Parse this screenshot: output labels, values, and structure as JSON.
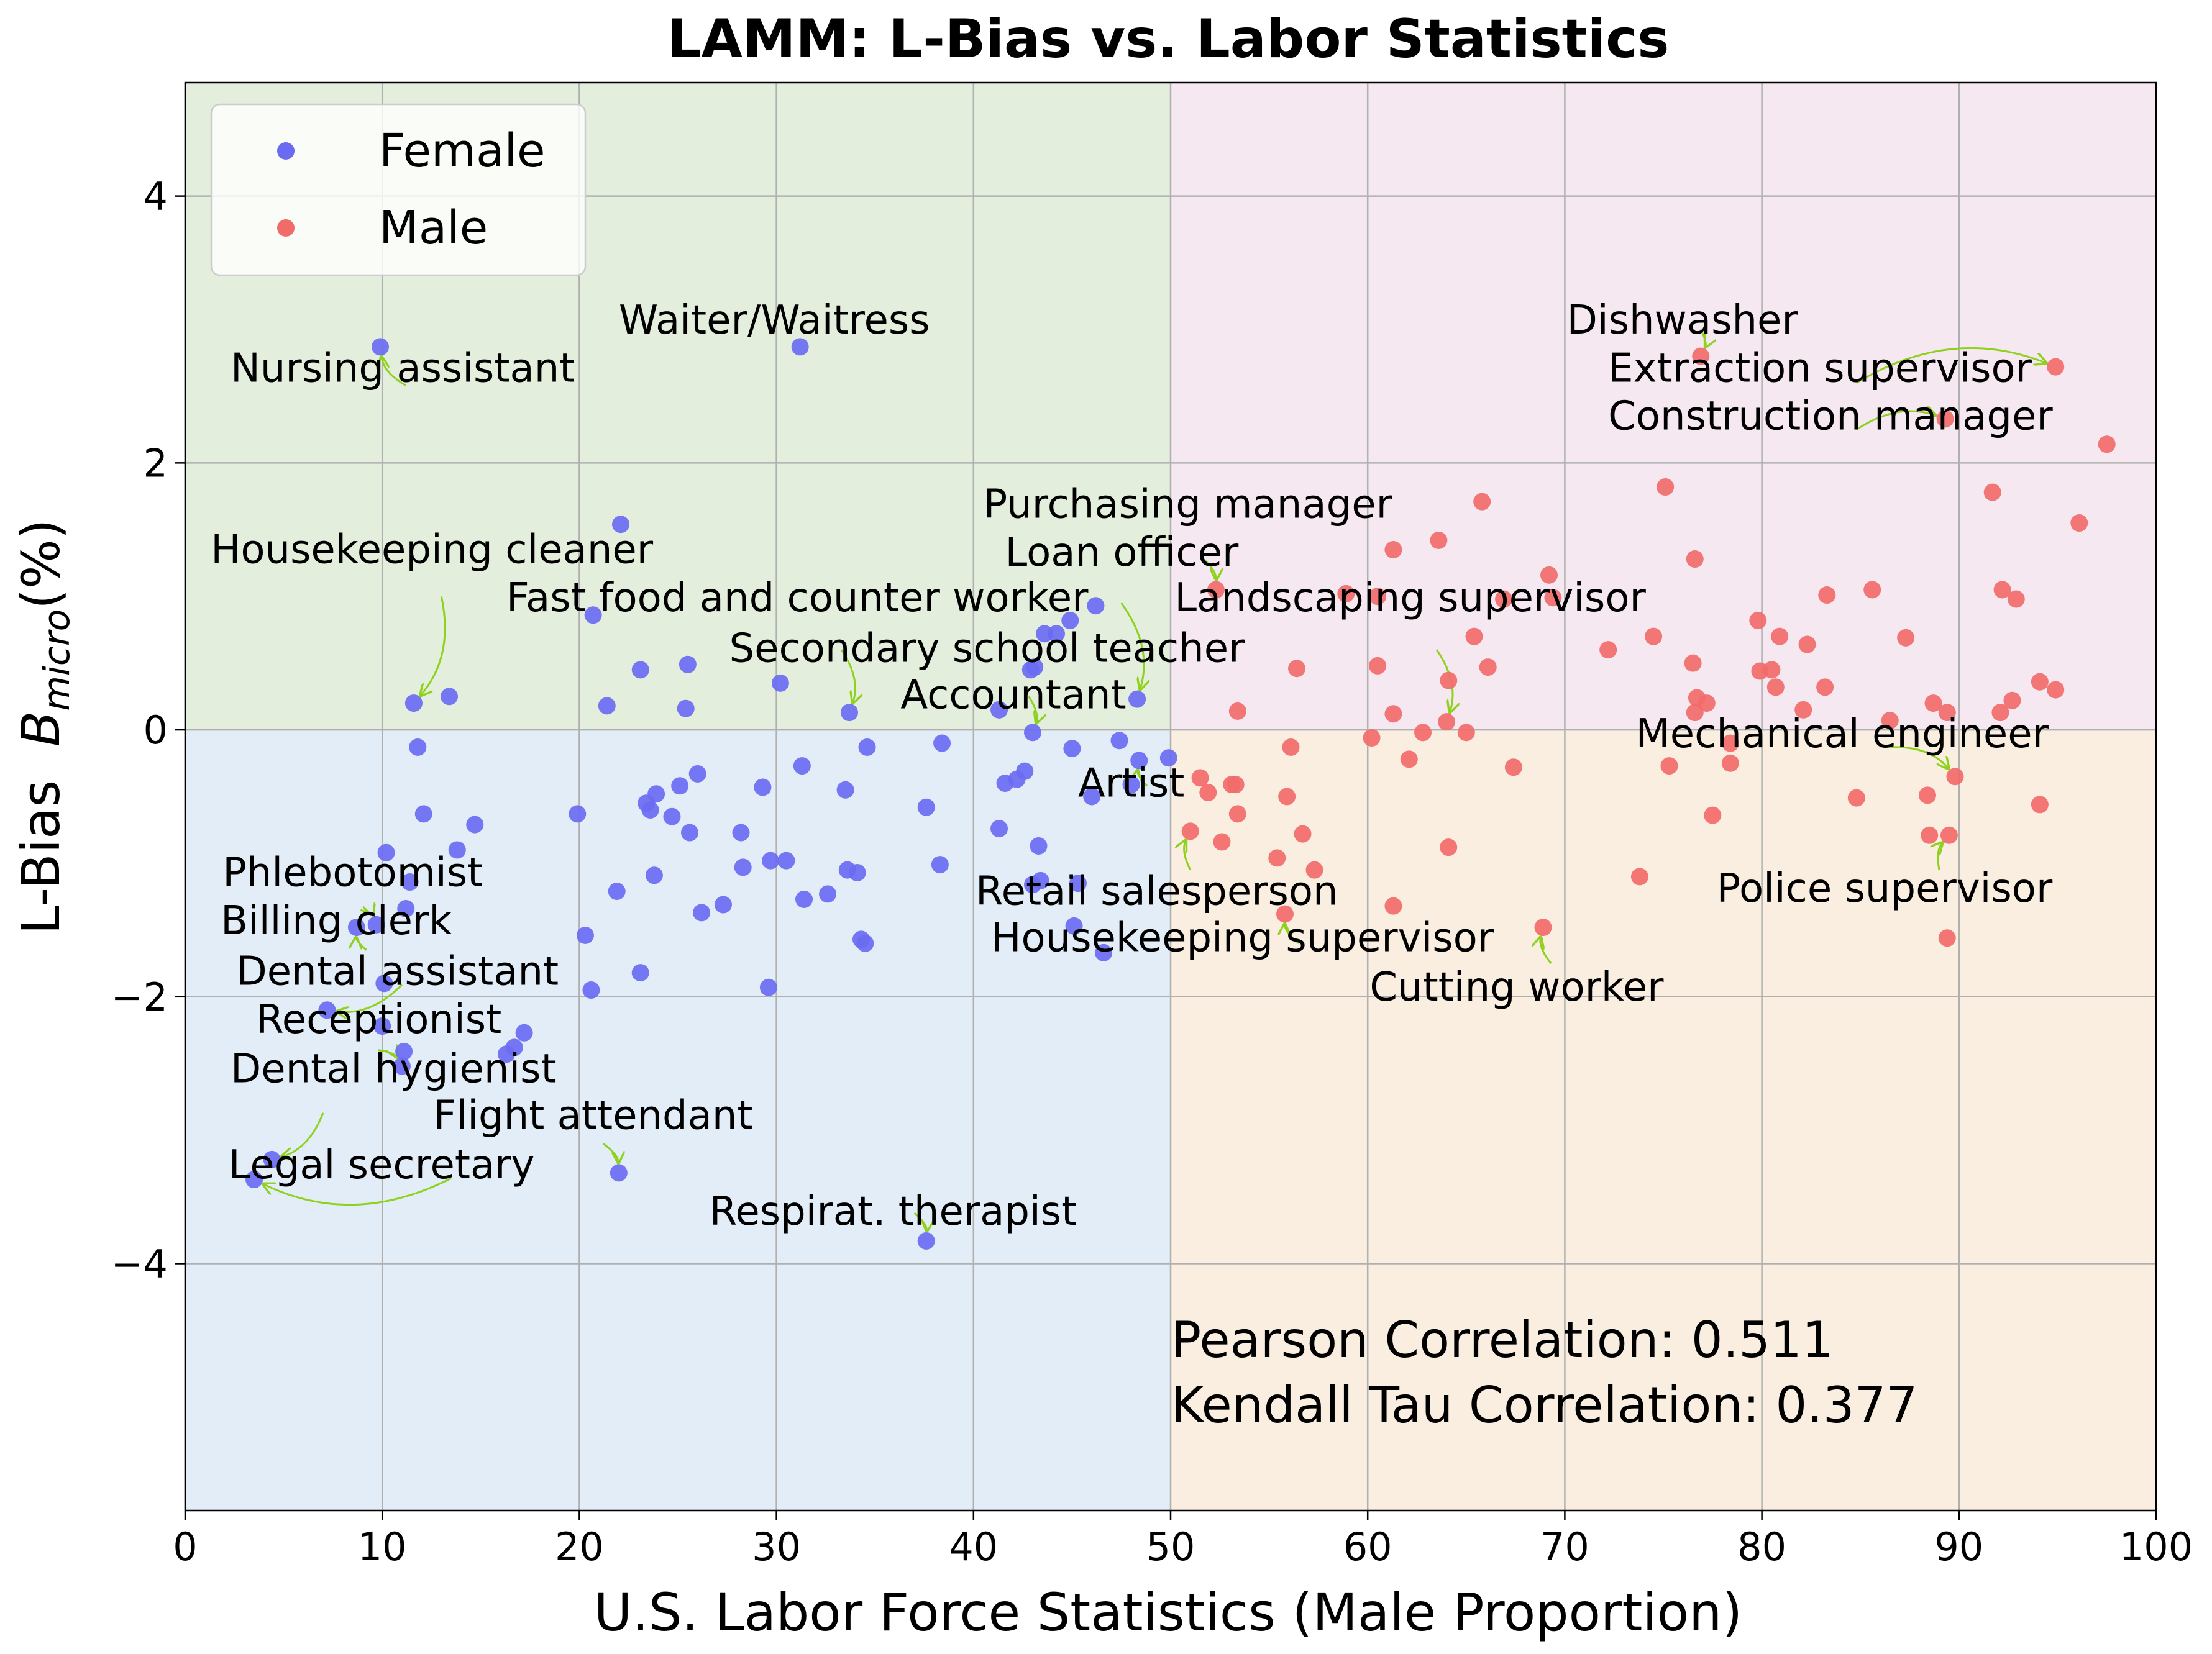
{
  "chart_data": {
    "type": "scatter",
    "title": "LAMM: L-Bias vs. Labor Statistics",
    "xlabel": "U.S. Labor Force Statistics (Male Proportion)",
    "ylabel_prefix": "L-Bias  ",
    "ylabel_var": "B",
    "ylabel_sub": "micro",
    "ylabel_unit": "(%)",
    "xlim": [
      0,
      100
    ],
    "ylim": [
      -5.85,
      4.85
    ],
    "xticks": [
      0,
      10,
      20,
      30,
      40,
      50,
      60,
      70,
      80,
      90,
      100
    ],
    "xtick_labels": [
      "0",
      "10",
      "20",
      "30",
      "40",
      "50",
      "60",
      "70",
      "80",
      "90",
      "100"
    ],
    "yticks": [
      4,
      2,
      0,
      -2,
      -4
    ],
    "ytick_labels": [
      "4",
      "2",
      "0",
      "−2",
      "−4"
    ],
    "grid": true,
    "legend_position": "top-left",
    "quadrant_colors": {
      "top_left": "#e3eedc",
      "top_right": "#f6e8f0",
      "bottom_left": "#e2edf7",
      "bottom_right": "#f9eedf"
    },
    "arrow_color": "#8fd11f",
    "series": [
      {
        "name": "Female",
        "color": "#6b6bf2",
        "points": [
          [
            9.9,
            2.87
          ],
          [
            31.2,
            2.87
          ],
          [
            22.1,
            1.54
          ],
          [
            20.7,
            0.86
          ],
          [
            11.6,
            0.2
          ],
          [
            13.4,
            0.25
          ],
          [
            21.4,
            0.18
          ],
          [
            23.1,
            0.45
          ],
          [
            25.5,
            0.49
          ],
          [
            25.4,
            0.16
          ],
          [
            30.2,
            0.35
          ],
          [
            33.7,
            0.13
          ],
          [
            43.1,
            0.47
          ],
          [
            46.2,
            0.93
          ],
          [
            43.6,
            0.72
          ],
          [
            44.2,
            0.72
          ],
          [
            44.9,
            0.82
          ],
          [
            41.3,
            0.15
          ],
          [
            42.9,
            0.45
          ],
          [
            48.3,
            0.23
          ],
          [
            11.8,
            -0.13
          ],
          [
            12.1,
            -0.63
          ],
          [
            14.7,
            -0.71
          ],
          [
            13.8,
            -0.9
          ],
          [
            10.2,
            -0.92
          ],
          [
            11.4,
            -1.14
          ],
          [
            11.2,
            -1.34
          ],
          [
            9.7,
            -1.46
          ],
          [
            8.7,
            -1.48
          ],
          [
            10.1,
            -1.9
          ],
          [
            10.0,
            -2.22
          ],
          [
            11.1,
            -2.41
          ],
          [
            11.0,
            -2.52
          ],
          [
            7.2,
            -2.1
          ],
          [
            4.4,
            -3.22
          ],
          [
            3.5,
            -3.37
          ],
          [
            16.3,
            -2.43
          ],
          [
            17.2,
            -2.27
          ],
          [
            16.7,
            -2.38
          ],
          [
            19.9,
            -0.63
          ],
          [
            20.3,
            -1.54
          ],
          [
            21.9,
            -1.21
          ],
          [
            20.6,
            -1.95
          ],
          [
            23.1,
            -1.82
          ],
          [
            22.0,
            -3.32
          ],
          [
            23.4,
            -0.55
          ],
          [
            23.9,
            -0.48
          ],
          [
            23.6,
            -0.6
          ],
          [
            24.7,
            -0.65
          ],
          [
            25.1,
            -0.42
          ],
          [
            25.6,
            -0.77
          ],
          [
            23.8,
            -1.09
          ],
          [
            26.0,
            -0.33
          ],
          [
            26.2,
            -1.37
          ],
          [
            27.3,
            -1.31
          ],
          [
            28.2,
            -0.77
          ],
          [
            28.3,
            -1.03
          ],
          [
            29.3,
            -0.43
          ],
          [
            29.7,
            -0.98
          ],
          [
            30.5,
            -0.98
          ],
          [
            29.6,
            -1.93
          ],
          [
            31.3,
            -0.27
          ],
          [
            31.4,
            -1.27
          ],
          [
            32.6,
            -1.23
          ],
          [
            33.5,
            -0.45
          ],
          [
            33.6,
            -1.05
          ],
          [
            34.1,
            -1.07
          ],
          [
            34.3,
            -1.57
          ],
          [
            34.5,
            -1.6
          ],
          [
            34.6,
            -0.13
          ],
          [
            37.6,
            -0.58
          ],
          [
            38.3,
            -1.01
          ],
          [
            38.4,
            -0.1
          ],
          [
            37.6,
            -3.83
          ],
          [
            41.3,
            -0.74
          ],
          [
            41.6,
            -0.4
          ],
          [
            42.2,
            -0.37
          ],
          [
            42.6,
            -0.31
          ],
          [
            43.0,
            -0.02
          ],
          [
            43.0,
            -1.16
          ],
          [
            43.4,
            -1.13
          ],
          [
            43.3,
            -0.87
          ],
          [
            45.0,
            -0.14
          ],
          [
            45.3,
            -1.15
          ],
          [
            45.1,
            -1.47
          ],
          [
            46.0,
            -0.5
          ],
          [
            46.6,
            -1.67
          ],
          [
            47.4,
            -0.08
          ],
          [
            48.0,
            -0.41
          ],
          [
            48.4,
            -0.23
          ],
          [
            49.9,
            -0.21
          ]
        ]
      },
      {
        "name": "Male",
        "color": "#f26b6b",
        "points": [
          [
            52.3,
            1.05
          ],
          [
            53.4,
            0.14
          ],
          [
            56.4,
            0.46
          ],
          [
            58.9,
            1.02
          ],
          [
            60.5,
            1.0
          ],
          [
            60.5,
            0.48
          ],
          [
            61.3,
            1.35
          ],
          [
            61.3,
            0.12
          ],
          [
            63.6,
            1.42
          ],
          [
            64.1,
            0.37
          ],
          [
            64.0,
            0.06
          ],
          [
            65.4,
            0.7
          ],
          [
            65.8,
            1.71
          ],
          [
            66.1,
            0.47
          ],
          [
            66.9,
            0.98
          ],
          [
            69.2,
            1.16
          ],
          [
            69.4,
            0.99
          ],
          [
            72.2,
            0.6
          ],
          [
            74.5,
            0.7
          ],
          [
            75.1,
            1.82
          ],
          [
            76.6,
            1.28
          ],
          [
            76.5,
            0.5
          ],
          [
            76.7,
            0.24
          ],
          [
            76.6,
            0.13
          ],
          [
            77.2,
            0.2
          ],
          [
            76.9,
            2.8
          ],
          [
            79.8,
            0.82
          ],
          [
            79.9,
            0.44
          ],
          [
            80.5,
            0.45
          ],
          [
            80.7,
            0.32
          ],
          [
            80.9,
            0.7
          ],
          [
            82.1,
            0.15
          ],
          [
            82.3,
            0.64
          ],
          [
            83.2,
            0.32
          ],
          [
            83.3,
            1.01
          ],
          [
            85.6,
            1.05
          ],
          [
            86.5,
            0.07
          ],
          [
            87.3,
            0.69
          ],
          [
            88.7,
            0.2
          ],
          [
            89.4,
            0.13
          ],
          [
            89.3,
            2.33
          ],
          [
            91.7,
            1.78
          ],
          [
            92.1,
            0.13
          ],
          [
            92.2,
            1.05
          ],
          [
            92.7,
            0.22
          ],
          [
            92.9,
            0.98
          ],
          [
            94.1,
            0.36
          ],
          [
            94.9,
            0.3
          ],
          [
            94.9,
            2.72
          ],
          [
            96.1,
            1.55
          ],
          [
            97.5,
            2.14
          ],
          [
            51.5,
            -0.36
          ],
          [
            51.9,
            -0.47
          ],
          [
            51.0,
            -0.76
          ],
          [
            52.6,
            -0.84
          ],
          [
            53.1,
            -0.41
          ],
          [
            53.3,
            -0.41
          ],
          [
            53.4,
            -0.63
          ],
          [
            55.4,
            -0.96
          ],
          [
            55.9,
            -0.5
          ],
          [
            56.1,
            -0.13
          ],
          [
            56.7,
            -0.78
          ],
          [
            57.3,
            -1.05
          ],
          [
            55.8,
            -1.38
          ],
          [
            60.2,
            -0.06
          ],
          [
            61.3,
            -1.32
          ],
          [
            62.1,
            -0.22
          ],
          [
            62.8,
            -0.02
          ],
          [
            64.1,
            -0.88
          ],
          [
            65.0,
            -0.02
          ],
          [
            67.4,
            -0.28
          ],
          [
            68.9,
            -1.48
          ],
          [
            73.8,
            -1.1
          ],
          [
            75.3,
            -0.27
          ],
          [
            77.5,
            -0.64
          ],
          [
            78.4,
            -0.1
          ],
          [
            78.4,
            -0.25
          ],
          [
            84.8,
            -0.51
          ],
          [
            88.4,
            -0.49
          ],
          [
            88.5,
            -0.79
          ],
          [
            89.5,
            -0.79
          ],
          [
            89.4,
            -1.56
          ],
          [
            89.8,
            -0.35
          ],
          [
            94.1,
            -0.56
          ]
        ]
      }
    ],
    "annotations": [
      {
        "text": "Nursing assistant",
        "x": 9.9,
        "y": 2.87,
        "tx": 2.3,
        "ty": 2.61,
        "ax": 11.2,
        "ay": 2.58
      },
      {
        "text": "Waiter/Waitress",
        "x": 31.2,
        "y": 2.87,
        "tx": 22.0,
        "ty": 2.97
      },
      {
        "text": "Housekeeping cleaner",
        "x": 11.6,
        "y": 0.2,
        "tx": 1.3,
        "ty": 1.25,
        "ax": 13.0,
        "ay": 1.0
      },
      {
        "text": "Fast food and counter worker",
        "x": 20.7,
        "y": 0.86,
        "tx": 16.3,
        "ty": 0.89
      },
      {
        "text": "Secondary school teacher",
        "x": 33.7,
        "y": 0.13,
        "tx": 27.6,
        "ty": 0.51,
        "ax": 33.3,
        "ay": 0.6
      },
      {
        "text": "Purchasing manager",
        "x": 52.3,
        "y": 1.05,
        "tx": 40.5,
        "ty": 1.59,
        "ax": 51.5,
        "ay": 1.3
      },
      {
        "text": "Loan officer",
        "x": 48.3,
        "y": 0.23,
        "tx": 41.6,
        "ty": 1.23,
        "ax": 47.5,
        "ay": 0.95
      },
      {
        "text": "Landscaping supervisor",
        "x": 64.0,
        "y": 0.06,
        "tx": 50.2,
        "ty": 0.89,
        "ax": 63.5,
        "ay": 0.6
      },
      {
        "text": "Accountant",
        "x": 43.0,
        "y": -0.02,
        "tx": 36.3,
        "ty": 0.16,
        "ax": 42.8,
        "ay": 0.25
      },
      {
        "text": "Artist",
        "x": 48.4,
        "y": -0.23,
        "tx": 45.3,
        "ty": -0.5,
        "ax": 48.8,
        "ay": -0.42
      },
      {
        "text": "Retail salesperson",
        "x": 51.0,
        "y": -0.76,
        "tx": 40.1,
        "ty": -1.31,
        "ax": 51.0,
        "ay": -1.05
      },
      {
        "text": "Housekeeping supervisor",
        "x": 55.8,
        "y": -1.38,
        "tx": 40.9,
        "ty": -1.66,
        "ax": 56.5,
        "ay": -1.6
      },
      {
        "text": "Cutting worker",
        "x": 68.9,
        "y": -1.48,
        "tx": 60.1,
        "ty": -2.03,
        "ax": 69.3,
        "ay": -1.75
      },
      {
        "text": "Mechanical engineer",
        "x": 89.8,
        "y": -0.35,
        "tx": 73.6,
        "ty": -0.13,
        "ax": 86.5,
        "ay": -0.13
      },
      {
        "text": "Police supervisor",
        "x": 89.5,
        "y": -0.79,
        "tx": 77.7,
        "ty": -1.29,
        "ax": 89.0,
        "ay": -1.05
      },
      {
        "text": "Dishwasher",
        "x": 76.9,
        "y": 2.8,
        "tx": 70.1,
        "ty": 2.97,
        "ax": 76.9,
        "ay": 3.0
      },
      {
        "text": "Extraction supervisor",
        "x": 94.9,
        "y": 2.72,
        "tx": 72.2,
        "ty": 2.61,
        "ax": 84.8,
        "ay": 2.6
      },
      {
        "text": "Construction manager",
        "x": 89.3,
        "y": 2.33,
        "tx": 72.2,
        "ty": 2.25,
        "ax": 84.8,
        "ay": 2.25
      },
      {
        "text": "Phlebotomist",
        "x": 9.7,
        "y": -1.46,
        "tx": 1.9,
        "ty": -1.17,
        "ax": 8.9,
        "ay": -1.35
      },
      {
        "text": "Billing clerk",
        "x": 8.7,
        "y": -1.48,
        "tx": 1.8,
        "ty": -1.53,
        "ax": 9.2,
        "ay": -1.65
      },
      {
        "text": "Dental assistant",
        "x": 7.2,
        "y": -2.1,
        "tx": 2.6,
        "ty": -1.91,
        "ax": 11.0,
        "ay": -1.91
      },
      {
        "text": "Receptionist",
        "x": 11.0,
        "y": -2.52,
        "tx": 3.6,
        "ty": -2.27,
        "ax": 9.8,
        "ay": -2.4
      },
      {
        "text": "Dental hygienist",
        "x": 4.4,
        "y": -3.22,
        "tx": 2.3,
        "ty": -2.64,
        "ax": 7.0,
        "ay": -2.87
      },
      {
        "text": "Flight attendant",
        "x": 22.0,
        "y": -3.32,
        "tx": 12.6,
        "ty": -2.99,
        "ax": 21.2,
        "ay": -3.1
      },
      {
        "text": "Legal secretary",
        "x": 3.5,
        "y": -3.37,
        "tx": 2.2,
        "ty": -3.36,
        "ax": 13.5,
        "ay": -3.36
      },
      {
        "text": "Respirat. therapist",
        "x": 37.6,
        "y": -3.83,
        "tx": 26.6,
        "ty": -3.71,
        "ax": 37.0,
        "ay": -3.62
      }
    ],
    "stats_lines": [
      "Pearson Correlation: 0.511",
      "Kendall Tau Correlation: 0.377"
    ]
  }
}
